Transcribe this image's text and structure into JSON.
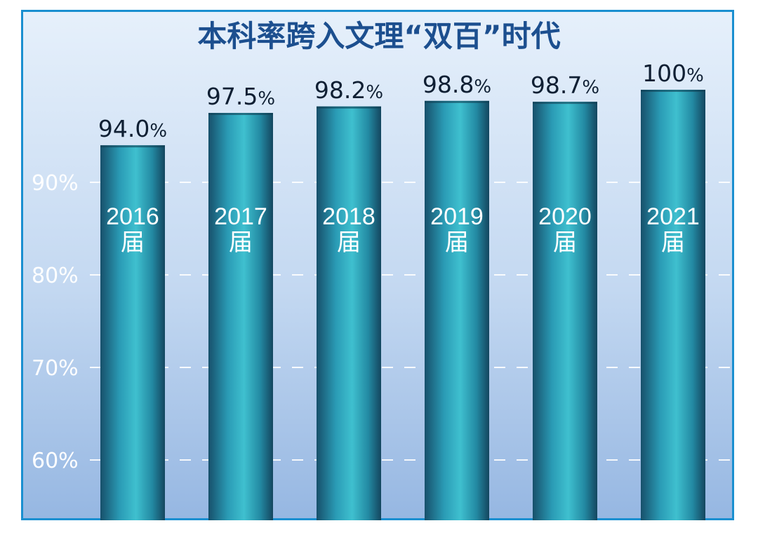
{
  "chart_data": {
    "type": "bar",
    "title": "本科率跨入文理“双百”时代",
    "categories": [
      "2016",
      "2017",
      "2018",
      "2019",
      "2020",
      "2021"
    ],
    "category_suffix": "届",
    "values": [
      94.0,
      97.5,
      98.2,
      98.8,
      98.7,
      100
    ],
    "value_labels": [
      "94.0",
      "97.5",
      "98.2",
      "98.8",
      "98.7",
      "100"
    ],
    "value_unit": "%",
    "y_ticks": [
      90,
      80,
      70,
      60
    ],
    "y_tick_labels": [
      "90%",
      "80%",
      "70%",
      "60%"
    ],
    "ylim": [
      55,
      100
    ],
    "grid": true,
    "xlabel": "",
    "ylabel": "",
    "colors": {
      "bar_dark": "#17506b",
      "bar_mid": "#2aa4ba",
      "bar_light": "#3fc0cf",
      "title": "#1c4f8f",
      "frame": "#1a8fd0"
    }
  }
}
